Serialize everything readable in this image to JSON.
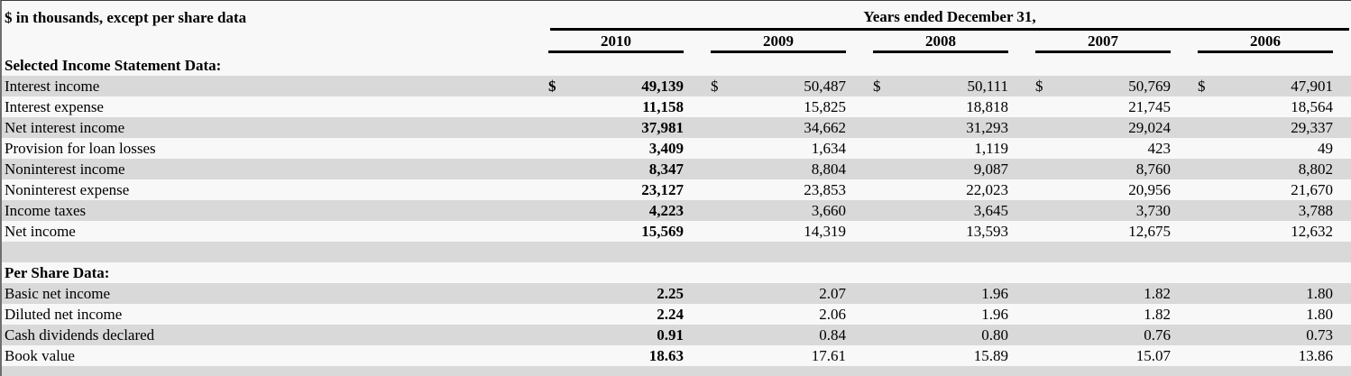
{
  "header": {
    "units_note": "$ in thousands, except per share data",
    "span_title": "Years ended December 31,",
    "years": [
      "2010",
      "2009",
      "2008",
      "2007",
      "2006"
    ]
  },
  "currency_symbol": "$",
  "sections": [
    {
      "title": "Selected Income Statement Data:",
      "rows": [
        {
          "label": "Interest income",
          "dollar": true,
          "values": [
            "49,139",
            "50,487",
            "50,111",
            "50,769",
            "47,901"
          ]
        },
        {
          "label": "Interest expense",
          "dollar": false,
          "values": [
            "11,158",
            "15,825",
            "18,818",
            "21,745",
            "18,564"
          ]
        },
        {
          "label": "Net interest income",
          "dollar": false,
          "values": [
            "37,981",
            "34,662",
            "31,293",
            "29,024",
            "29,337"
          ]
        },
        {
          "label": "Provision for loan losses",
          "dollar": false,
          "values": [
            "3,409",
            "1,634",
            "1,119",
            "423",
            "49"
          ]
        },
        {
          "label": "Noninterest income",
          "dollar": false,
          "values": [
            "8,347",
            "8,804",
            "9,087",
            "8,760",
            "8,802"
          ]
        },
        {
          "label": "Noninterest expense",
          "dollar": false,
          "values": [
            "23,127",
            "23,853",
            "22,023",
            "20,956",
            "21,670"
          ]
        },
        {
          "label": "Income taxes",
          "dollar": false,
          "values": [
            "4,223",
            "3,660",
            "3,645",
            "3,730",
            "3,788"
          ]
        },
        {
          "label": "Net income",
          "dollar": false,
          "values": [
            "15,569",
            "14,319",
            "13,593",
            "12,675",
            "12,632"
          ]
        }
      ]
    },
    {
      "title": "Per Share Data:",
      "rows": [
        {
          "label": "Basic net income",
          "dollar": false,
          "values": [
            "2.25",
            "2.07",
            "1.96",
            "1.82",
            "1.80"
          ]
        },
        {
          "label": "Diluted net income",
          "dollar": false,
          "values": [
            "2.24",
            "2.06",
            "1.96",
            "1.82",
            "1.80"
          ]
        },
        {
          "label": "Cash dividends declared",
          "dollar": false,
          "values": [
            "0.91",
            "0.84",
            "0.80",
            "0.76",
            "0.73"
          ]
        },
        {
          "label": "Book value",
          "dollar": false,
          "values": [
            "18.63",
            "17.61",
            "15.89",
            "15.07",
            "13.86"
          ]
        }
      ]
    }
  ],
  "colors": {
    "row_shade": "#d9d9d9",
    "row_plain": "#f8f8f8",
    "rule": "#000000"
  }
}
